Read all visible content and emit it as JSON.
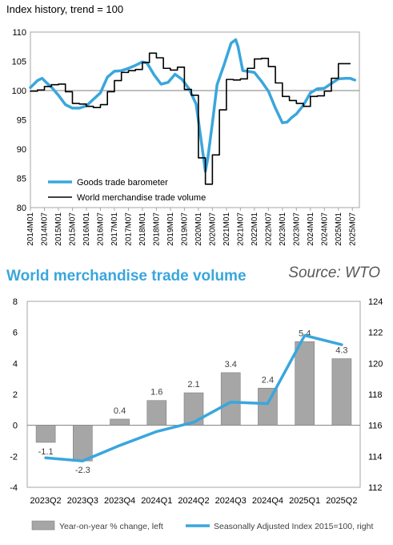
{
  "header": {
    "subtitle": "Index history, trend = 100"
  },
  "section_title": "World merchandise trade volume",
  "source": "Source: WTO",
  "chart_data": [
    {
      "type": "line",
      "title": "Index history, trend = 100",
      "ylim": [
        80,
        110
      ],
      "y_ticks": [
        80,
        85,
        90,
        95,
        100,
        105,
        110
      ],
      "x_tick_labels": [
        "2014M01",
        "2014M07",
        "2015M01",
        "2015M07",
        "2016M01",
        "2016M07",
        "2017M01",
        "2017M07",
        "2018M01",
        "2018M07",
        "2019M01",
        "2019M07",
        "2020M01",
        "2020M07",
        "2021M01",
        "2021M07",
        "2022M01",
        "2022M07",
        "2023M01",
        "2023M07",
        "2024M01",
        "2024M07",
        "2025M01",
        "2025M07"
      ],
      "reference_line": 100,
      "legend": [
        "Goods trade barometer",
        "World merchandise trade volume"
      ],
      "series": [
        {
          "name": "Goods trade barometer",
          "color": "#3aa6dd",
          "x": [
            "2014M01",
            "2014M04",
            "2014M06",
            "2014M08",
            "2014M10",
            "2015M01",
            "2015M04",
            "2015M07",
            "2015M10",
            "2016M01",
            "2016M04",
            "2016M07",
            "2016M10",
            "2017M01",
            "2017M04",
            "2017M07",
            "2017M10",
            "2018M01",
            "2018M03",
            "2018M06",
            "2018M09",
            "2018M12",
            "2019M03",
            "2019M06",
            "2019M09",
            "2019M12",
            "2020M02",
            "2020M04",
            "2020M05",
            "2020M07",
            "2020M09",
            "2020M12",
            "2021M03",
            "2021M05",
            "2021M06",
            "2021M08",
            "2021M10",
            "2022M01",
            "2022M04",
            "2022M07",
            "2022M10",
            "2023M01",
            "2023M03",
            "2023M05",
            "2023M07",
            "2023M10",
            "2024M01",
            "2024M04",
            "2024M07",
            "2024M10",
            "2025M01",
            "2025M04",
            "2025M06",
            "2025M08"
          ],
          "values": [
            100.5,
            101.7,
            102.1,
            101.3,
            100.6,
            99.2,
            97.6,
            97.0,
            97.0,
            97.4,
            98.5,
            99.6,
            102.3,
            103.3,
            103.4,
            103.8,
            104.3,
            104.9,
            104.7,
            102.7,
            101.1,
            101.4,
            102.8,
            101.9,
            100.3,
            97.7,
            92.0,
            86.2,
            88.3,
            94.5,
            101.0,
            104.4,
            108.1,
            108.7,
            107.5,
            103.4,
            103.3,
            103.1,
            101.6,
            99.9,
            97.0,
            94.5,
            94.6,
            95.4,
            96.0,
            97.5,
            99.6,
            100.3,
            100.4,
            101.2,
            102.0,
            102.1,
            102.1,
            101.8
          ]
        },
        {
          "name": "World merchandise trade volume",
          "color": "#000000",
          "x": [
            "2014M01",
            "2014M04",
            "2014M07",
            "2014M10",
            "2015M01",
            "2015M04",
            "2015M07",
            "2015M10",
            "2016M01",
            "2016M04",
            "2016M07",
            "2016M10",
            "2017M01",
            "2017M04",
            "2017M07",
            "2017M10",
            "2018M01",
            "2018M04",
            "2018M07",
            "2018M10",
            "2019M01",
            "2019M04",
            "2019M07",
            "2019M10",
            "2020M01",
            "2020M04",
            "2020M07",
            "2020M10",
            "2021M01",
            "2021M04",
            "2021M07",
            "2021M10",
            "2022M01",
            "2022M04",
            "2022M07",
            "2022M10",
            "2023M01",
            "2023M04",
            "2023M07",
            "2023M10",
            "2024M01",
            "2024M04",
            "2024M07",
            "2024M10",
            "2025M01",
            "2025M04"
          ],
          "values": [
            99.9,
            100.1,
            100.7,
            101.0,
            101.1,
            99.8,
            97.8,
            97.7,
            97.3,
            97.1,
            97.6,
            99.8,
            101.7,
            103.1,
            103.4,
            103.6,
            104.8,
            106.4,
            105.6,
            103.8,
            103.5,
            104.0,
            100.2,
            99.2,
            88.5,
            84.0,
            89.0,
            96.7,
            101.9,
            101.8,
            102.0,
            103.8,
            105.4,
            105.5,
            104.1,
            101.3,
            99.0,
            98.3,
            97.8,
            97.3,
            99.0,
            99.1,
            99.9,
            102.1,
            104.6,
            104.6
          ]
        }
      ]
    },
    {
      "type": "bar",
      "categories": [
        "2023Q2",
        "2023Q3",
        "2023Q4",
        "2024Q1",
        "2024Q2",
        "2024Q3",
        "2024Q4",
        "2025Q1",
        "2025Q2"
      ],
      "ylim": [
        -4,
        8
      ],
      "y_ticks": [
        -4,
        -2,
        0,
        2,
        4,
        6,
        8
      ],
      "y2lim": [
        112,
        124
      ],
      "y2_ticks": [
        112,
        114,
        116,
        118,
        120,
        122,
        124
      ],
      "series": [
        {
          "name": "Year-on-year % change, left",
          "type": "bar",
          "color": "#a6a6a6",
          "values": [
            -1.1,
            -2.3,
            0.4,
            1.6,
            2.1,
            3.4,
            2.4,
            5.4,
            4.3
          ],
          "data_labels": [
            "-1.1",
            "-2.3",
            "0.4",
            "1.6",
            "2.1",
            "3.4",
            "2.4",
            "5.4",
            "4.3"
          ]
        },
        {
          "name": "Seasonally Adjusted Index 2015=100, right",
          "type": "line",
          "axis": "right",
          "color": "#3aa6dd",
          "values": [
            113.9,
            113.7,
            114.7,
            115.6,
            116.2,
            117.5,
            117.4,
            121.8,
            121.2
          ]
        }
      ],
      "legend": [
        "Year-on-year % change, left",
        "Seasonally Adjusted Index 2015=100, right"
      ],
      "legend_position": "bottom"
    }
  ]
}
